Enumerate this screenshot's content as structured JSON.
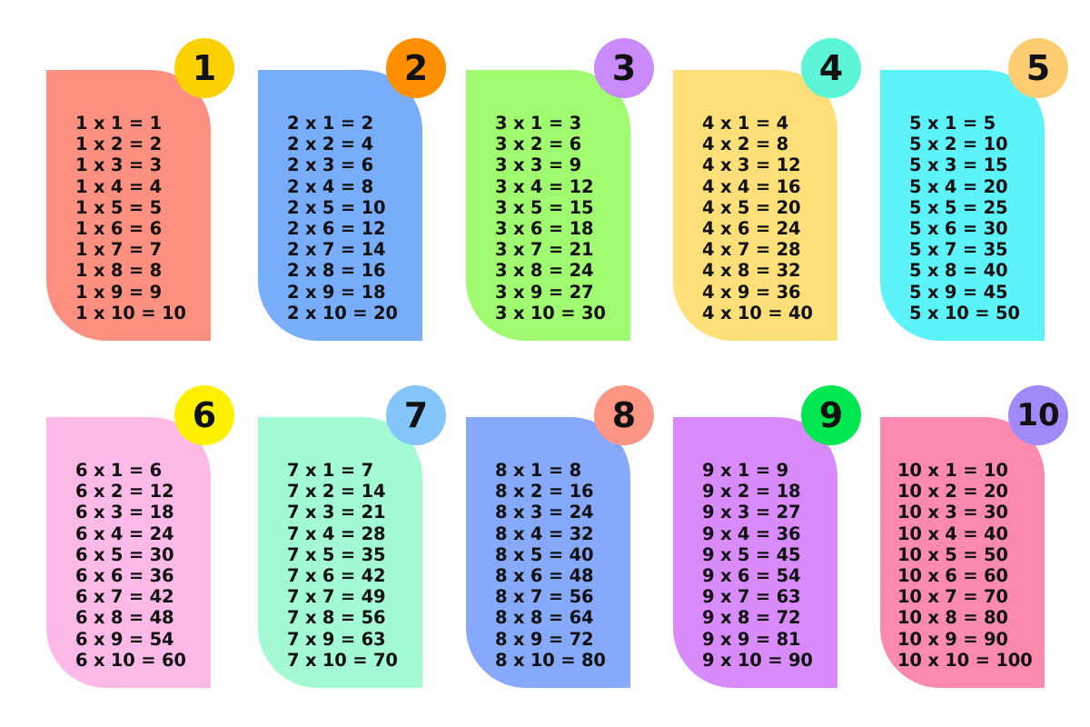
{
  "tables": [
    {
      "number": "1",
      "card_color": "#fd9080",
      "badge_color": "#fdd000",
      "lines": [
        "1 x 1 = 1",
        "1 x 2 = 2",
        "1 x 3 = 3",
        "1 x 4 = 4",
        "1 x 5 = 5",
        "1 x 6 = 6",
        "1 x 7 = 7",
        "1 x 8 = 8",
        "1 x 9 = 9",
        "1 x 10 = 10"
      ]
    },
    {
      "number": "2",
      "card_color": "#78adfb",
      "badge_color": "#fe9000",
      "lines": [
        "2 x 1 = 2",
        "2 x 2 = 4",
        "2 x 3 = 6",
        "2 x 4 = 8",
        "2 x 5 = 10",
        "2 x 6 = 12",
        "2 x 7 = 14",
        "2 x 8 = 16",
        "2 x 9 = 18",
        "2 x 10 = 20"
      ]
    },
    {
      "number": "3",
      "card_color": "#a0fb70",
      "badge_color": "#c98bfa",
      "lines": [
        "3 x 1 = 3",
        "3 x 2 = 6",
        "3 x 3 = 9",
        "3 x 4 = 12",
        "3 x 5 = 15",
        "3 x 6 = 18",
        "3 x 7 = 21",
        "3 x 8 = 24",
        "3 x 9 = 27",
        "3 x 10 = 30"
      ]
    },
    {
      "number": "4",
      "card_color": "#fedf78",
      "badge_color": "#5cf5d8",
      "lines": [
        "4 x 1 = 4",
        "4 x 2 = 8",
        "4 x 3 = 12",
        "4 x 4 = 16",
        "4 x 5 = 20",
        "4 x 6 = 24",
        "4 x 7 = 28",
        "4 x 8 = 32",
        "4 x 9 = 36",
        "4 x 10 = 40"
      ]
    },
    {
      "number": "5",
      "card_color": "#5cf3fb",
      "badge_color": "#fecd71",
      "lines": [
        "5 x 1 = 5",
        "5 x 2 = 10",
        "5 x 3 = 15",
        "5 x 4 = 20",
        "5 x 5 = 25",
        "5 x 6 = 30",
        "5 x 7 = 35",
        "5 x 8 = 40",
        "5 x 9 = 45",
        "5 x 10 = 50"
      ]
    },
    {
      "number": "6",
      "card_color": "#fdb9e8",
      "badge_color": "#fef100",
      "lines": [
        "6 x 1 = 6",
        "6 x 2 = 12",
        "6 x 3 = 18",
        "6 x 4 = 24",
        "6 x 5 = 30",
        "6 x 6 = 36",
        "6 x 7 = 42",
        "6 x 8 = 48",
        "6 x 9 = 54",
        "6 x 10 = 60"
      ]
    },
    {
      "number": "7",
      "card_color": "#a3fbd4",
      "badge_color": "#84c6fb",
      "lines": [
        "7 x 1 = 7",
        "7 x 2 = 14",
        "7 x 3 = 21",
        "7 x 4 = 28",
        "7 x 5 = 35",
        "7 x 6 = 42",
        "7 x 7 = 49",
        "7 x 8 = 56",
        "7 x 9 = 63",
        "7 x 10 = 70"
      ]
    },
    {
      "number": "8",
      "card_color": "#87a9fb",
      "badge_color": "#fd9684",
      "lines": [
        "8 x 1 = 8",
        "8 x 2 = 16",
        "8 x 3 = 24",
        "8 x 4 = 32",
        "8 x 5 = 40",
        "8 x 6 = 48",
        "8 x 7 = 56",
        "8 x 8 = 64",
        "8 x 9 = 72",
        "8 x 10 = 80"
      ]
    },
    {
      "number": "9",
      "card_color": "#d98bfb",
      "badge_color": "#00e851",
      "lines": [
        "9 x 1 = 9",
        "9 x 2 = 18",
        "9 x 3 = 27",
        "9 x 4 = 36",
        "9 x 5 = 45",
        "9 x 6 = 54",
        "9 x 7 = 63",
        "9 x 8 = 72",
        "9 x 9 = 81",
        "9 x 10 = 90"
      ]
    },
    {
      "number": "10",
      "card_color": "#fc8aaf",
      "badge_color": "#a189f9",
      "lines": [
        "10 x 1 = 10",
        "10 x 2 = 20",
        "10 x 3 = 30",
        "10 x 4 = 40",
        "10 x 5 = 50",
        "10 x 6 = 60",
        "10 x 7 = 70",
        "10 x 8 = 80",
        "10 x 9 = 90",
        "10 x 10 = 100"
      ]
    }
  ]
}
